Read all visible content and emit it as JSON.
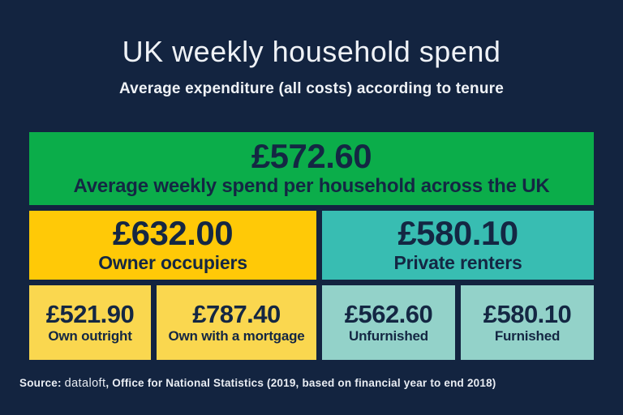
{
  "page": {
    "background_color": "#132440",
    "text_light_color": "#EFF2F6",
    "text_dark_color": "#142743"
  },
  "header": {
    "title": "UK weekly household spend",
    "subtitle": "Average expenditure (all costs) according to tenure"
  },
  "chart_data": {
    "type": "table",
    "title": "UK weekly household spend",
    "subtitle": "Average expenditure (all costs) according to tenure",
    "unit": "GBP per week",
    "hierarchy": [
      {
        "label": "Average weekly spend per household across the UK",
        "value": 572.6,
        "level": 0,
        "color": "#0BAD4A"
      },
      {
        "label": "Owner occupiers",
        "value": 632.0,
        "level": 1,
        "parent": "UK",
        "color": "#FFC907"
      },
      {
        "label": "Private renters",
        "value": 580.1,
        "level": 1,
        "parent": "UK",
        "color": "#38BDB2"
      },
      {
        "label": "Own outright",
        "value": 521.9,
        "level": 2,
        "parent": "Owner occupiers",
        "color": "#FAD74F"
      },
      {
        "label": "Own with a mortgage",
        "value": 787.4,
        "level": 2,
        "parent": "Owner occupiers",
        "color": "#FAD74F"
      },
      {
        "label": "Unfurnished",
        "value": 562.6,
        "level": 2,
        "parent": "Private renters",
        "color": "#93D2C9"
      },
      {
        "label": "Furnished",
        "value": 580.1,
        "level": 2,
        "parent": "Private renters",
        "color": "#93D2C9"
      }
    ]
  },
  "boxes": {
    "uk": {
      "value": "£572.60",
      "label": "Average weekly spend per household across the UK",
      "color": "#0BAD4A"
    },
    "owner": {
      "value": "£632.00",
      "label": "Owner occupiers",
      "color": "#FFC907"
    },
    "renters": {
      "value": "£580.10",
      "label": "Private renters",
      "color": "#38BDB2"
    },
    "outright": {
      "value": "£521.90",
      "label": "Own outright",
      "color": "#FAD74F"
    },
    "mortgage": {
      "value": "£787.40",
      "label": "Own with a mortgage",
      "color": "#FAD74F"
    },
    "unfurnished": {
      "value": "£562.60",
      "label": "Unfurnished",
      "color": "#93D2C9"
    },
    "furnished": {
      "value": "£580.10",
      "label": "Furnished",
      "color": "#93D2C9"
    }
  },
  "source": {
    "prefix": "Source: ",
    "brand": "dataloft",
    "rest": ", Office for National Statistics (2019, based on financial year to end 2018)"
  }
}
